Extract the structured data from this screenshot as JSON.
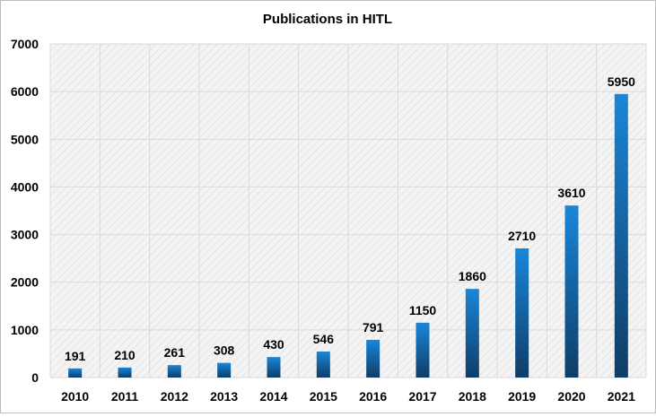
{
  "chart_data": {
    "type": "bar",
    "title": "Publications in HITL",
    "xlabel": "",
    "ylabel": "",
    "categories": [
      "2010",
      "2011",
      "2012",
      "2013",
      "2014",
      "2015",
      "2016",
      "2017",
      "2018",
      "2019",
      "2020",
      "2021"
    ],
    "values": [
      191,
      210,
      261,
      308,
      430,
      546,
      791,
      1150,
      1860,
      2710,
      3610,
      5950
    ],
    "ylim": [
      0,
      7000
    ],
    "yticks": [
      0,
      1000,
      2000,
      3000,
      4000,
      5000,
      6000,
      7000
    ],
    "grid": true,
    "legend": "none",
    "colors": {
      "bar_top": "#1a86d9",
      "bar_bottom": "#0f3d66",
      "grid": "#d9d9d9",
      "plot_bg": "#f2f2f2"
    }
  }
}
